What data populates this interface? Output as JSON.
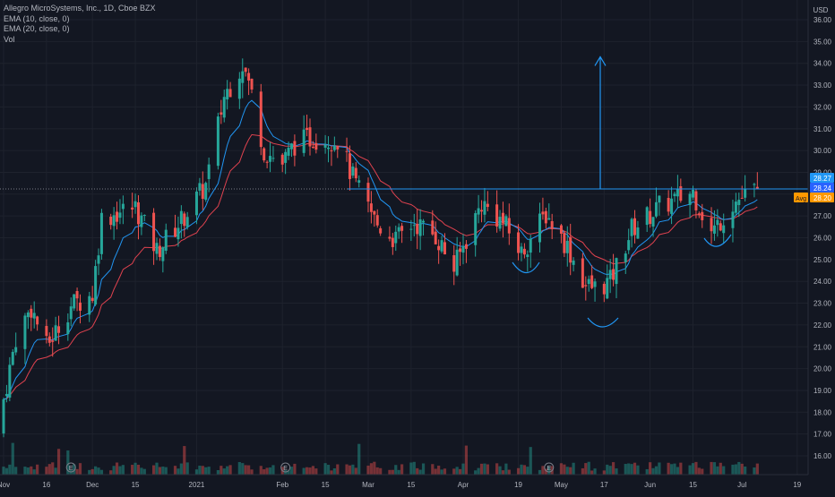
{
  "header": {
    "symbol_line": "Allegro MicroSystems, Inc., 1D, Cboe BZX",
    "indicators": [
      "EMA (10, close, 0)",
      "EMA (20, close, 0)",
      "Vol"
    ]
  },
  "price_axis": {
    "currency": "USD",
    "ticks": [
      "36.00",
      "35.00",
      "34.00",
      "33.00",
      "32.00",
      "31.00",
      "30.00",
      "29.00",
      "28.00",
      "27.00",
      "26.00",
      "25.00",
      "24.00",
      "23.00",
      "22.00",
      "21.00",
      "20.00",
      "19.00",
      "18.00",
      "17.00",
      "16.00"
    ]
  },
  "price_badges": {
    "top": "28.27",
    "mid": "28.24",
    "bottom": "28.20",
    "bottom_tag": "Avg"
  },
  "time_axis": {
    "labels": [
      "Nov",
      "16",
      "Dec",
      "15",
      "2021",
      "Feb",
      "15",
      "Mar",
      "15",
      "Apr",
      "19",
      "May",
      "17",
      "Jun",
      "15",
      "Jul",
      "19"
    ]
  },
  "colors": {
    "up": "#26a69a",
    "down": "#ef5350",
    "ema10": "#2196f3",
    "ema20": "#e0424f",
    "annotation": "#2196f3",
    "background": "#131722"
  },
  "annotations": {
    "resistance_level": 28.24,
    "target_arrow_from": 28.24,
    "target_arrow_to": 34.3
  },
  "chart_data": {
    "type": "candlestick",
    "title": "Allegro MicroSystems, Inc., 1D, Cboe BZX",
    "ylabel": "USD",
    "ylim": [
      15.2,
      36.2
    ],
    "x_range": [
      "2020-11-02",
      "2021-07-20"
    ],
    "grid": true,
    "legend_placement": "top-left",
    "approx_close_path": [
      {
        "date": "2020-11-02",
        "close": 18.6
      },
      {
        "date": "2020-11-06",
        "close": 21.4
      },
      {
        "date": "2020-11-11",
        "close": 22.8
      },
      {
        "date": "2020-11-16",
        "close": 21.0
      },
      {
        "date": "2020-11-24",
        "close": 22.9
      },
      {
        "date": "2020-12-01",
        "close": 23.4
      },
      {
        "date": "2020-12-04",
        "close": 26.9
      },
      {
        "date": "2020-12-10",
        "close": 27.2
      },
      {
        "date": "2020-12-15",
        "close": 27.4
      },
      {
        "date": "2020-12-22",
        "close": 25.4
      },
      {
        "date": "2020-12-30",
        "close": 26.8
      },
      {
        "date": "2021-01-07",
        "close": 28.4
      },
      {
        "date": "2021-01-13",
        "close": 32.5
      },
      {
        "date": "2021-01-19",
        "close": 34.0
      },
      {
        "date": "2021-01-22",
        "close": 32.6
      },
      {
        "date": "2021-01-26",
        "close": 30.0
      },
      {
        "date": "2021-02-01",
        "close": 29.4
      },
      {
        "date": "2021-02-05",
        "close": 30.3
      },
      {
        "date": "2021-02-11",
        "close": 30.6
      },
      {
        "date": "2021-02-19",
        "close": 30.5
      },
      {
        "date": "2021-02-25",
        "close": 28.4
      },
      {
        "date": "2021-03-04",
        "close": 26.6
      },
      {
        "date": "2021-03-10",
        "close": 25.9
      },
      {
        "date": "2021-03-16",
        "close": 26.7
      },
      {
        "date": "2021-03-23",
        "close": 26.1
      },
      {
        "date": "2021-03-29",
        "close": 24.6
      },
      {
        "date": "2021-04-07",
        "close": 27.6
      },
      {
        "date": "2021-04-14",
        "close": 26.7
      },
      {
        "date": "2021-04-20",
        "close": 25.3
      },
      {
        "date": "2021-04-28",
        "close": 27.1
      },
      {
        "date": "2021-05-05",
        "close": 25.6
      },
      {
        "date": "2021-05-11",
        "close": 23.8
      },
      {
        "date": "2021-05-14",
        "close": 23.7
      },
      {
        "date": "2021-05-19",
        "close": 24.0
      },
      {
        "date": "2021-05-26",
        "close": 26.4
      },
      {
        "date": "2021-06-04",
        "close": 27.4
      },
      {
        "date": "2021-06-15",
        "close": 28.1
      },
      {
        "date": "2021-06-21",
        "close": 26.2
      },
      {
        "date": "2021-06-28",
        "close": 27.6
      },
      {
        "date": "2021-07-06",
        "close": 28.24
      }
    ],
    "key_levels": {
      "all_time_high_intraday": 34.6,
      "may_low": 22.1,
      "last_close": 28.24
    }
  }
}
